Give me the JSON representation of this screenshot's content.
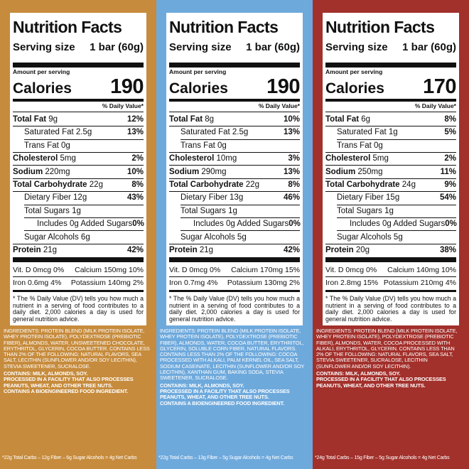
{
  "panels": [
    {
      "color": "#c68b3c",
      "title": "Nutrition Facts",
      "serving_label": "Serving size",
      "serving_amount": "1 bar (60g)",
      "amount_per_serving": "Amount per serving",
      "calories_label": "Calories",
      "calories": "190",
      "dv_header": "% Daily Value*",
      "rows": [
        {
          "label": "Total Fat",
          "amount": "9g",
          "dv": "12%",
          "bold": true,
          "indent": 0
        },
        {
          "label": "Saturated Fat",
          "amount": "2.5g",
          "dv": "13%",
          "bold": false,
          "indent": 1
        },
        {
          "label": "Trans Fat",
          "amount": "0g",
          "bold": false,
          "indent": 1
        },
        {
          "label": "Cholesterol",
          "amount": "5mg",
          "dv": "2%",
          "bold": true,
          "indent": 0
        },
        {
          "label": "Sodium",
          "amount": "220mg",
          "dv": "10%",
          "bold": true,
          "indent": 0
        },
        {
          "label": "Total Carbohydrate",
          "amount": "22g",
          "dv": "8%",
          "bold": true,
          "indent": 0
        },
        {
          "label": "Dietary Fiber",
          "amount": "12g",
          "dv": "43%",
          "bold": false,
          "indent": 1
        },
        {
          "label": "Total Sugars",
          "amount": "1g",
          "bold": false,
          "indent": 1
        },
        {
          "label": "Includes 0g Added Sugars",
          "dv": "0%",
          "bold": false,
          "indent": 2
        },
        {
          "label": "Sugar Alcohols",
          "amount": "6g",
          "bold": false,
          "indent": 1
        },
        {
          "label": "Protein",
          "amount": "21g",
          "dv": "42%",
          "bold": true,
          "indent": 0
        }
      ],
      "vitamins": [
        [
          "Vit. D 0mcg 0%",
          "Calcium 150mg 10%"
        ],
        [
          "Iron 0.6mg 4%",
          "Potassium 140mg 2%"
        ]
      ],
      "footnote": "* The % Daily Value (DV) tells you how much a nutrient in a serving of food contributes to a daily diet. 2,000 calories a day is used for general nutrition advice.",
      "ingredients": "INGREDIENTS: PROTEIN BLEND (MILK PROTEIN ISOLATE, WHEY PROTEIN ISOLATE), POLYDEXTROSE (PREBIOTIC FIBER), ALMONDS, WATER, UNSWEETENED CHOCOLATE, ERYTHRITOL, GLYCERIN, COCOA BUTTER. CONTAINS LESS THAN 2% OF THE FOLLOWING: NATURAL FLAVORS, SEA SALT, LECITHIN (SUNFLOWER AND/OR SOY LECITHIN), STEVIA SWEETENER, SUCRALOSE.",
      "statements": [
        "CONTAINS: MILK, ALMONDS, SOY.",
        "PROCESSED IN A FACILITY THAT ALSO PROCESSES PEANUTS, WHEAT, AND OTHER TREE NUTS.",
        "CONTAINS A BIOENGINEERED FOOD INGREDIENT."
      ],
      "net_carbs": "*22g Total Carbs – 12g Fiber – 6g Sugar Alcohols = 4g Net Carbs"
    },
    {
      "color": "#6ea9dc",
      "title": "Nutrition Facts",
      "serving_label": "Serving size",
      "serving_amount": "1 bar (60g)",
      "amount_per_serving": "Amount per serving",
      "calories_label": "Calories",
      "calories": "190",
      "dv_header": "% Daily Value*",
      "rows": [
        {
          "label": "Total Fat",
          "amount": "8g",
          "dv": "10%",
          "bold": true,
          "indent": 0
        },
        {
          "label": "Saturated Fat",
          "amount": "2.5g",
          "dv": "13%",
          "bold": false,
          "indent": 1
        },
        {
          "label": "Trans Fat",
          "amount": "0g",
          "bold": false,
          "indent": 1
        },
        {
          "label": "Cholesterol",
          "amount": "10mg",
          "dv": "3%",
          "bold": true,
          "indent": 0
        },
        {
          "label": "Sodium",
          "amount": "290mg",
          "dv": "13%",
          "bold": true,
          "indent": 0
        },
        {
          "label": "Total Carbohydrate",
          "amount": "22g",
          "dv": "8%",
          "bold": true,
          "indent": 0
        },
        {
          "label": "Dietary Fiber",
          "amount": "13g",
          "dv": "46%",
          "bold": false,
          "indent": 1
        },
        {
          "label": "Total Sugars",
          "amount": "1g",
          "bold": false,
          "indent": 1
        },
        {
          "label": "Includes 0g Added Sugars",
          "dv": "0%",
          "bold": false,
          "indent": 2
        },
        {
          "label": "Sugar Alcohols",
          "amount": "5g",
          "bold": false,
          "indent": 1
        },
        {
          "label": "Protein",
          "amount": "21g",
          "dv": "42%",
          "bold": true,
          "indent": 0
        }
      ],
      "vitamins": [
        [
          "Vit. D 0mcg 0%",
          "Calcium 170mg 15%"
        ],
        [
          "Iron 0.7mg 4%",
          "Potassium 130mg 2%"
        ]
      ],
      "footnote": "* The % Daily Value (DV) tells you how much a nutrient in a serving of food contributes to a daily diet. 2,000 calories a day is used for general nutrition advice.",
      "ingredients": "INGREDIENTS: PROTEIN BLEND (MILK PROTEIN ISOLATE, WHEY PROTEIN ISOLATE), POLYDEXTROSE (PREBIOTIC FIBER), ALMONDS, WATER, COCOA BUTTER, ERYTHRITOL, GLYCERIN, SOLUBLE CORN FIBER, NATURAL FLAVORS. CONTAINS LESS THAN 2% OF THE FOLLOWING: COCOA PROCESSED WITH ALKALI, PALM KERNEL OIL, SEA SALT, SODIUM CASEINATE, LECITHIN (SUNFLOWER AND/OR SOY LECITHIN), XANTHAN GUM, BAKING SODA, STEVIA SWEETENER, SUCRALOSE.",
      "statements": [
        "CONTAINS: MILK, ALMONDS, SOY.",
        "PROCESSED IN A FACILITY THAT ALSO PROCESSES PEANUTS, WHEAT, AND OTHER TREE NUTS.",
        "CONTAINS A BIOENGINEERED FOOD INGREDIENT."
      ],
      "net_carbs": "*22g Total Carbs – 13g Fiber – 5g Sugar Alcohols = 4g Net Carbs"
    },
    {
      "color": "#a2302b",
      "title": "Nutrition Facts",
      "serving_label": "Serving size",
      "serving_amount": "1 bar (60g)",
      "amount_per_serving": "Amount per serving",
      "calories_label": "Calories",
      "calories": "170",
      "dv_header": "% Daily Value*",
      "rows": [
        {
          "label": "Total Fat",
          "amount": "6g",
          "dv": "8%",
          "bold": true,
          "indent": 0
        },
        {
          "label": "Saturated Fat",
          "amount": "1g",
          "dv": "5%",
          "bold": false,
          "indent": 1
        },
        {
          "label": "Trans Fat",
          "amount": "0g",
          "bold": false,
          "indent": 1
        },
        {
          "label": "Cholesterol",
          "amount": "5mg",
          "dv": "2%",
          "bold": true,
          "indent": 0
        },
        {
          "label": "Sodium",
          "amount": "250mg",
          "dv": "11%",
          "bold": true,
          "indent": 0
        },
        {
          "label": "Total Carbohydrate",
          "amount": "24g",
          "dv": "9%",
          "bold": true,
          "indent": 0
        },
        {
          "label": "Dietary Fiber",
          "amount": "15g",
          "dv": "54%",
          "bold": false,
          "indent": 1
        },
        {
          "label": "Total Sugars",
          "amount": "1g",
          "bold": false,
          "indent": 1
        },
        {
          "label": "Includes 0g Added Sugars",
          "dv": "0%",
          "bold": false,
          "indent": 2
        },
        {
          "label": "Sugar Alcohols",
          "amount": "5g",
          "bold": false,
          "indent": 1
        },
        {
          "label": "Protein",
          "amount": "20g",
          "dv": "38%",
          "bold": true,
          "indent": 0
        }
      ],
      "vitamins": [
        [
          "Vit. D 0mcg 0%",
          "Calcium 140mg 10%"
        ],
        [
          "Iron 2.8mg 15%",
          "Potassium 210mg 4%"
        ]
      ],
      "footnote": "* The % Daily Value (DV) tells you how much a nutrient in a serving of food contributes to a daily diet. 2,000 calories a day is used for general nutrition advice.",
      "ingredients": "INGREDIENTS: PROTEIN BLEND (MILK PROTEIN ISOLATE, WHEY PROTEIN ISOLATE), POLYDEXTROSE (PREBIOTIC FIBER), ALMONDS, WATER, COCOA PROCESSED WITH ALKALI, ERYTHRITOL, GLYCERIN. CONTAINS LESS THAN 2% OF THE FOLLOWING: NATURAL FLAVORS, SEA SALT, STEVIA SWEETENER, SUCRALOSE, LECITHIN (SUNFLOWER AND/OR SOY LECITHIN).",
      "statements": [
        "CONTAINS: MILK, ALMONDS, SOY.",
        "PROCESSED IN A FACILITY THAT ALSO PROCESSES PEANUTS, WHEAT, AND OTHER TREE NUTS."
      ],
      "net_carbs": "*24g Total Carbs – 15g Fiber – 5g Sugar Alcohols = 4g Net Carbs"
    }
  ]
}
